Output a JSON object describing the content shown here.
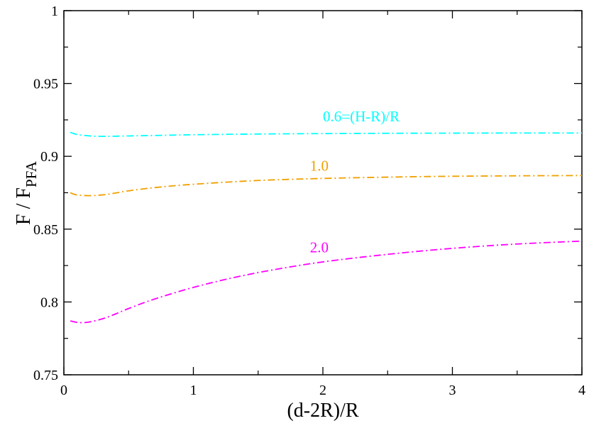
{
  "chart_data": {
    "type": "line",
    "xlabel": "(d-2R)/R",
    "ylabel": {
      "main": "F / F",
      "sub": "PFA"
    },
    "xlim": [
      0,
      4
    ],
    "ylim": [
      0.75,
      1.0
    ],
    "x_ticks": [
      0,
      1,
      2,
      3,
      4
    ],
    "x_tick_labels": [
      "0",
      "1",
      "2",
      "3",
      "4"
    ],
    "y_ticks": [
      0.75,
      0.8,
      0.85,
      0.9,
      0.95,
      1.0
    ],
    "y_tick_labels": [
      "0.75",
      "0.8",
      "0.85",
      "0.9",
      "0.95",
      "1"
    ],
    "grid": false,
    "series": [
      {
        "label": "0.6=(H-R)/R",
        "color": "#00ffff",
        "dash": "dash-dot",
        "label_at": [
          2.0,
          0.924
        ],
        "x": [
          0.05,
          0.1,
          0.2,
          0.3,
          0.4,
          0.5,
          0.7,
          1.0,
          1.5,
          2.0,
          2.5,
          3.0,
          3.5,
          4.0
        ],
        "y": [
          0.9165,
          0.915,
          0.914,
          0.9137,
          0.9138,
          0.914,
          0.9143,
          0.9148,
          0.9153,
          0.9156,
          0.9158,
          0.9159,
          0.916,
          0.916
        ]
      },
      {
        "label": "1.0",
        "color": "#f0a000",
        "dash": "dash-dot",
        "label_at": [
          1.9,
          0.89
        ],
        "x": [
          0.05,
          0.1,
          0.2,
          0.3,
          0.4,
          0.5,
          0.7,
          1.0,
          1.5,
          2.0,
          2.5,
          3.0,
          3.5,
          4.0
        ],
        "y": [
          0.875,
          0.8735,
          0.873,
          0.8735,
          0.8748,
          0.8763,
          0.8785,
          0.8808,
          0.8834,
          0.8848,
          0.8857,
          0.8863,
          0.8866,
          0.8868
        ]
      },
      {
        "label": "2.0",
        "color": "#ff00ff",
        "dash": "dash-dot",
        "label_at": [
          1.9,
          0.834
        ],
        "x": [
          0.05,
          0.1,
          0.15,
          0.2,
          0.3,
          0.4,
          0.5,
          0.7,
          1.0,
          1.3,
          1.6,
          2.0,
          2.5,
          3.0,
          3.5,
          4.0
        ],
        "y": [
          0.787,
          0.786,
          0.7858,
          0.7863,
          0.7885,
          0.7918,
          0.7955,
          0.802,
          0.81,
          0.8165,
          0.8218,
          0.8275,
          0.8327,
          0.8368,
          0.8398,
          0.8418
        ]
      }
    ]
  }
}
